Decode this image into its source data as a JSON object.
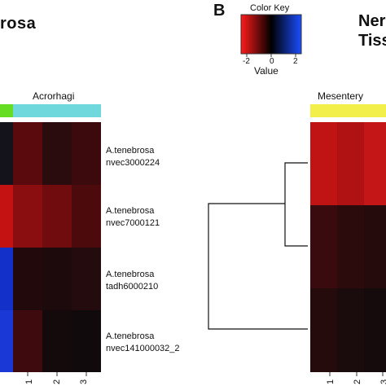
{
  "panel_a": {
    "title": "rosa",
    "group_label": "Acrorhagi",
    "row_labels": [
      "A.tenebrosa\nnvec3000224",
      "A.tenebrosa\nnvec7000121",
      "A.tenebrosa\ntadh6000210",
      "A.tenebrosa\nnvec141000032_2"
    ],
    "column_labels": [
      "1",
      "2",
      "3"
    ]
  },
  "panel_b": {
    "panel_letter": "B",
    "title": "Ner\nTiss",
    "group_label": "Mesentery",
    "column_labels": [
      "1",
      "2",
      "3"
    ]
  },
  "color_key": {
    "title": "Color Key",
    "value_label": "Value",
    "ticks": [
      "-2",
      "0",
      "2"
    ],
    "colors": [
      "#ff1a1a",
      "#000000",
      "#1a4dff"
    ]
  },
  "colors": {
    "acrorhagi_bar": "#6fd8dc",
    "other_bar": "#66dd22",
    "mesentery_bar": "#f2ee4a"
  }
}
